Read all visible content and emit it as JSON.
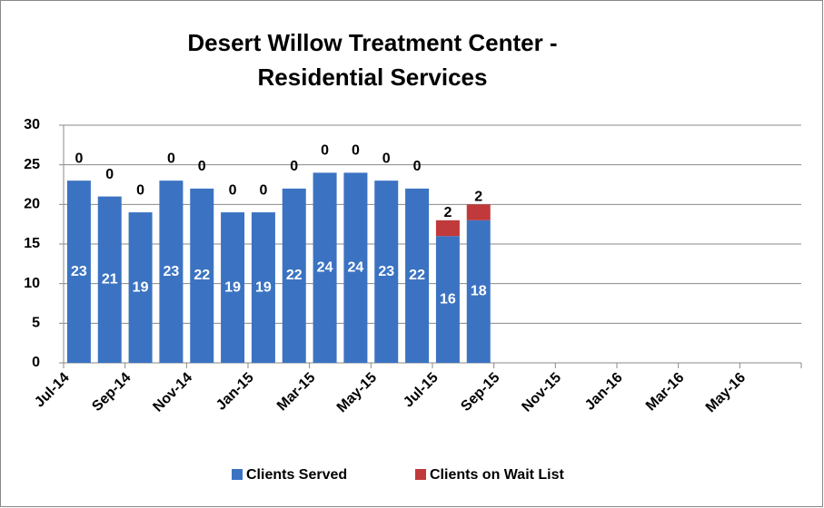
{
  "chart_data": {
    "type": "stacked_bar",
    "title": "Desert Willow Treatment Center - Residential Services",
    "categories": [
      "Jul-14",
      null,
      "Sep-14",
      null,
      "Nov-14",
      null,
      "Jan-15",
      null,
      "Mar-15",
      null,
      "May-15",
      null,
      "Jul-15",
      null,
      "Sep-15",
      null,
      "Nov-15",
      null,
      "Jan-16",
      null,
      "Mar-16",
      null,
      "May-16",
      null
    ],
    "series": [
      {
        "name": "Clients Served",
        "color": "#3b73c2",
        "values": [
          23,
          21,
          19,
          23,
          22,
          19,
          19,
          22,
          24,
          24,
          23,
          22,
          16,
          18,
          null,
          null,
          null,
          null,
          null,
          null,
          null,
          null,
          null,
          null
        ]
      },
      {
        "name": "Clients on Wait List",
        "color": "#c0393b",
        "values": [
          0,
          0,
          0,
          0,
          0,
          0,
          0,
          0,
          0,
          0,
          0,
          0,
          2,
          2,
          null,
          null,
          null,
          null,
          null,
          null,
          null,
          null,
          null,
          null
        ]
      }
    ],
    "ylim": [
      0,
      30
    ],
    "yticks": [
      0,
      5,
      10,
      15,
      20,
      25,
      30
    ],
    "grid": true,
    "legend": "bottom"
  }
}
